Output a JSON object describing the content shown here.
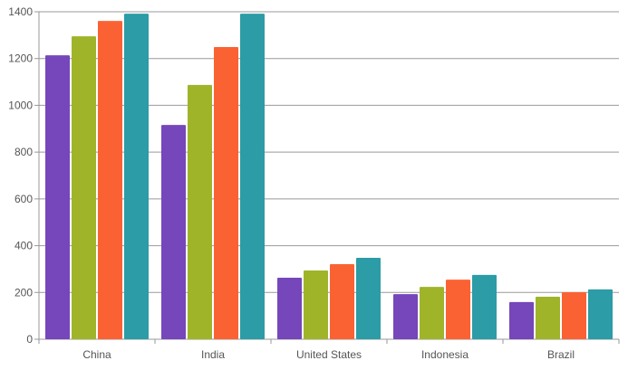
{
  "chart_data": {
    "type": "bar",
    "categories": [
      "China",
      "India",
      "United States",
      "Indonesia",
      "Brazil"
    ],
    "series": [
      {
        "values": [
          1214,
          916,
          263,
          193,
          159
        ],
        "color": "#7646bb"
      },
      {
        "values": [
          1295,
          1087,
          294,
          224,
          182
        ],
        "color": "#a0b42a"
      },
      {
        "values": [
          1361,
          1249,
          321,
          255,
          201
        ],
        "color": "#fb6233"
      },
      {
        "values": [
          1392,
          1392,
          348,
          275,
          213
        ],
        "color": "#2c9ca6"
      }
    ],
    "yticks": [
      0,
      200,
      400,
      600,
      800,
      1000,
      1200,
      1400
    ],
    "ylim": [
      0,
      1400
    ],
    "grid": true,
    "title": "",
    "xlabel": "",
    "ylabel": ""
  }
}
